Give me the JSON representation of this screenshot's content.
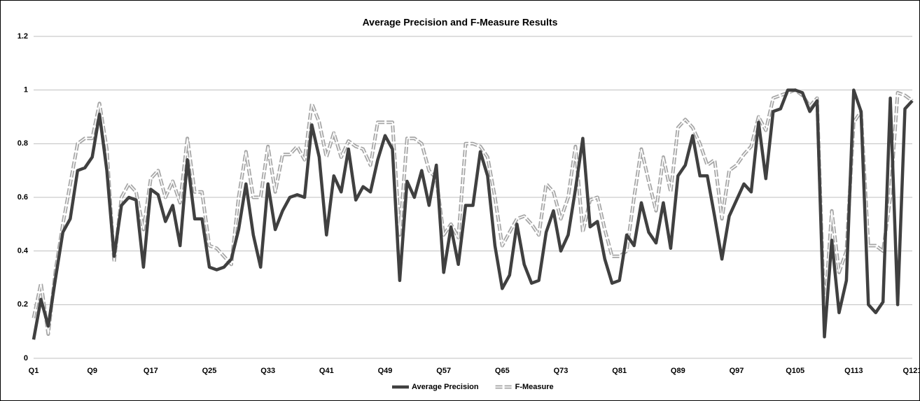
{
  "chart_data": {
    "type": "line",
    "title": "Average Precision and F-Measure Results",
    "categories": [
      "Q1",
      null,
      null,
      null,
      null,
      null,
      null,
      null,
      "Q9",
      null,
      null,
      null,
      null,
      null,
      null,
      null,
      "Q17",
      null,
      null,
      null,
      null,
      null,
      null,
      null,
      "Q25",
      null,
      null,
      null,
      null,
      null,
      null,
      null,
      "Q33",
      null,
      null,
      null,
      null,
      null,
      null,
      null,
      "Q41",
      null,
      null,
      null,
      null,
      null,
      null,
      null,
      "Q49",
      null,
      null,
      null,
      null,
      null,
      null,
      null,
      "Q57",
      null,
      null,
      null,
      null,
      null,
      null,
      null,
      "Q65",
      null,
      null,
      null,
      null,
      null,
      null,
      null,
      "Q73",
      null,
      null,
      null,
      null,
      null,
      null,
      null,
      "Q81",
      null,
      null,
      null,
      null,
      null,
      null,
      null,
      "Q89",
      null,
      null,
      null,
      null,
      null,
      null,
      null,
      "Q97",
      null,
      null,
      null,
      null,
      null,
      null,
      null,
      "Q105",
      null,
      null,
      null,
      null,
      null,
      null,
      null,
      "Q113",
      null,
      null,
      null,
      null,
      null,
      null,
      null,
      "Q121"
    ],
    "series": [
      {
        "name": "Average Precision",
        "color": "#404040",
        "values": [
          0.07,
          0.22,
          0.12,
          0.3,
          0.47,
          0.52,
          0.7,
          0.71,
          0.75,
          0.91,
          0.7,
          0.38,
          0.57,
          0.6,
          0.59,
          0.34,
          0.63,
          0.61,
          0.51,
          0.57,
          0.42,
          0.74,
          0.52,
          0.52,
          0.34,
          0.33,
          0.34,
          0.37,
          0.48,
          0.65,
          0.46,
          0.34,
          0.65,
          0.48,
          0.55,
          0.6,
          0.61,
          0.6,
          0.87,
          0.75,
          0.46,
          0.68,
          0.62,
          0.78,
          0.59,
          0.64,
          0.62,
          0.74,
          0.83,
          0.78,
          0.29,
          0.66,
          0.6,
          0.7,
          0.57,
          0.72,
          0.32,
          0.49,
          0.35,
          0.57,
          0.57,
          0.77,
          0.68,
          0.42,
          0.26,
          0.31,
          0.5,
          0.35,
          0.28,
          0.29,
          0.47,
          0.55,
          0.4,
          0.46,
          0.63,
          0.82,
          0.49,
          0.51,
          0.37,
          0.28,
          0.29,
          0.46,
          0.42,
          0.58,
          0.47,
          0.43,
          0.58,
          0.41,
          0.68,
          0.72,
          0.83,
          0.68,
          0.68,
          0.53,
          0.37,
          0.53,
          0.59,
          0.65,
          0.62,
          0.88,
          0.67,
          0.92,
          0.93,
          1.0,
          1.0,
          0.99,
          0.92,
          0.96,
          0.08,
          0.44,
          0.17,
          0.29,
          1.0,
          0.92,
          0.2,
          0.17,
          0.21,
          0.97,
          0.2,
          0.93,
          0.96
        ]
      },
      {
        "name": "F-Measure",
        "color": "#a6a6a6",
        "values": [
          0.15,
          0.28,
          0.09,
          0.33,
          0.5,
          0.65,
          0.8,
          0.82,
          0.82,
          0.95,
          0.78,
          0.36,
          0.6,
          0.65,
          0.62,
          0.48,
          0.67,
          0.7,
          0.6,
          0.66,
          0.58,
          0.82,
          0.62,
          0.62,
          0.42,
          0.41,
          0.38,
          0.35,
          0.6,
          0.77,
          0.6,
          0.6,
          0.79,
          0.62,
          0.76,
          0.76,
          0.79,
          0.74,
          0.95,
          0.88,
          0.75,
          0.84,
          0.75,
          0.81,
          0.79,
          0.78,
          0.72,
          0.88,
          0.88,
          0.88,
          0.46,
          0.82,
          0.82,
          0.8,
          0.7,
          0.67,
          0.46,
          0.5,
          0.45,
          0.8,
          0.8,
          0.79,
          0.75,
          0.6,
          0.42,
          0.47,
          0.52,
          0.53,
          0.5,
          0.46,
          0.65,
          0.62,
          0.52,
          0.6,
          0.79,
          0.47,
          0.59,
          0.6,
          0.48,
          0.38,
          0.38,
          0.4,
          0.6,
          0.78,
          0.66,
          0.55,
          0.75,
          0.62,
          0.86,
          0.89,
          0.86,
          0.8,
          0.72,
          0.74,
          0.52,
          0.7,
          0.72,
          0.76,
          0.79,
          0.9,
          0.85,
          0.97,
          0.98,
          0.99,
          1.0,
          0.98,
          0.94,
          0.97,
          0.15,
          0.55,
          0.32,
          0.4,
          0.88,
          0.92,
          0.42,
          0.42,
          0.4,
          0.6,
          0.99,
          0.98,
          0.96
        ]
      }
    ],
    "ylim": [
      0,
      1.2
    ],
    "yticks": [
      0,
      0.2,
      0.4,
      0.6,
      0.8,
      1,
      1.2
    ],
    "grid": true,
    "legend": "bottom"
  }
}
